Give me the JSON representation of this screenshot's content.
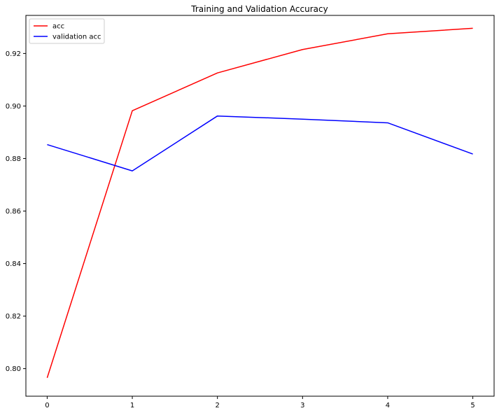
{
  "chart_data": {
    "type": "line",
    "title": "Training and Validation Accuracy",
    "xlabel": "",
    "ylabel": "",
    "x": [
      0,
      1,
      2,
      3,
      4,
      5
    ],
    "xlim": [
      -0.25,
      5.25
    ],
    "ylim": [
      0.7895,
      0.9345
    ],
    "x_ticks": [
      0,
      1,
      2,
      3,
      4,
      5
    ],
    "y_ticks": [
      0.8,
      0.82,
      0.84,
      0.86,
      0.88,
      0.9,
      0.92
    ],
    "x_tick_labels": [
      "0",
      "1",
      "2",
      "3",
      "4",
      "5"
    ],
    "y_tick_labels": [
      "0.80",
      "0.82",
      "0.84",
      "0.86",
      "0.88",
      "0.90",
      "0.92"
    ],
    "grid": false,
    "legend_position": "top-left",
    "series": [
      {
        "name": "acc",
        "color": "#ff0000",
        "values": [
          0.7965,
          0.8982,
          0.9126,
          0.9215,
          0.9275,
          0.9296
        ]
      },
      {
        "name": "validation acc",
        "color": "#0000ff",
        "values": [
          0.8853,
          0.8753,
          0.8962,
          0.895,
          0.8936,
          0.8817
        ]
      }
    ]
  }
}
